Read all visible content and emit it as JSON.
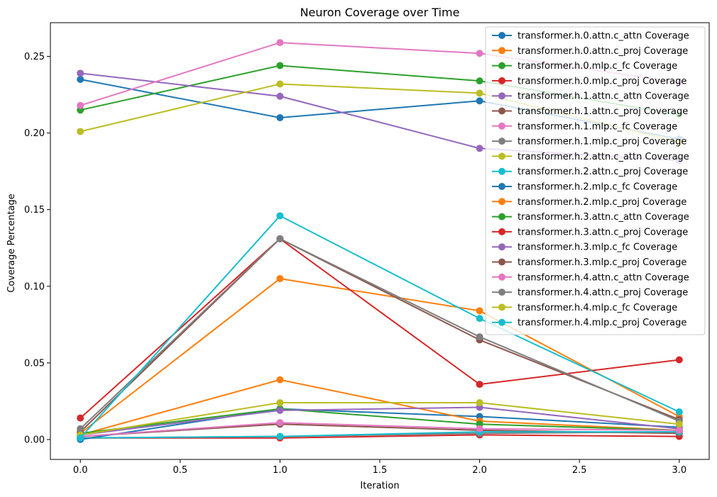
{
  "chart_data": {
    "type": "line",
    "title": "Neuron Coverage over Time",
    "xlabel": "Iteration",
    "ylabel": "Coverage Percentage",
    "xlim": [
      -0.15,
      3.15
    ],
    "ylim": [
      -0.013,
      0.272
    ],
    "xticks": [
      "0.0",
      "0.5",
      "1.0",
      "1.5",
      "2.0",
      "2.5",
      "3.0"
    ],
    "yticks": [
      "0.00",
      "0.05",
      "0.10",
      "0.15",
      "0.20",
      "0.25"
    ],
    "grid": false,
    "legend_position": "top-right",
    "x": [
      0,
      1,
      2,
      3
    ],
    "series": [
      {
        "name": "transformer.h.0.attn.c_attn Coverage",
        "color": "#1f77b4",
        "values": [
          0.235,
          0.21,
          0.221,
          0.196
        ]
      },
      {
        "name": "transformer.h.0.attn.c_proj Coverage",
        "color": "#ff7f0e",
        "values": [
          0.004,
          0.105,
          0.084,
          0.015
        ]
      },
      {
        "name": "transformer.h.0.mlp.c_fc Coverage",
        "color": "#2ca02c",
        "values": [
          0.215,
          0.244,
          0.234,
          0.212
        ]
      },
      {
        "name": "transformer.h.0.mlp.c_proj Coverage",
        "color": "#d62728",
        "values": [
          0.001,
          0.001,
          0.003,
          0.002
        ]
      },
      {
        "name": "transformer.h.1.attn.c_attn Coverage",
        "color": "#9467bd",
        "values": [
          0.239,
          0.224,
          0.19,
          0.182
        ]
      },
      {
        "name": "transformer.h.1.attn.c_proj Coverage",
        "color": "#8c564b",
        "values": [
          0.002,
          0.01,
          0.006,
          0.004
        ]
      },
      {
        "name": "transformer.h.1.mlp.c_fc Coverage",
        "color": "#e377c2",
        "values": [
          0.218,
          0.259,
          0.252,
          0.233
        ]
      },
      {
        "name": "transformer.h.1.mlp.c_proj Coverage",
        "color": "#7f7f7f",
        "values": [
          0.001,
          0.002,
          0.004,
          0.005
        ]
      },
      {
        "name": "transformer.h.2.attn.c_attn Coverage",
        "color": "#bcbd22",
        "values": [
          0.201,
          0.232,
          0.226,
          0.194
        ]
      },
      {
        "name": "transformer.h.2.attn.c_proj Coverage",
        "color": "#17becf",
        "values": [
          0.001,
          0.002,
          0.005,
          0.005
        ]
      },
      {
        "name": "transformer.h.2.mlp.c_fc Coverage",
        "color": "#1f77b4",
        "values": [
          0.0,
          0.02,
          0.015,
          0.008
        ]
      },
      {
        "name": "transformer.h.2.mlp.c_proj Coverage",
        "color": "#ff7f0e",
        "values": [
          0.003,
          0.039,
          0.012,
          0.006
        ]
      },
      {
        "name": "transformer.h.3.attn.c_attn Coverage",
        "color": "#2ca02c",
        "values": [
          0.004,
          0.02,
          0.01,
          0.006
        ]
      },
      {
        "name": "transformer.h.3.attn.c_proj Coverage",
        "color": "#d62728",
        "values": [
          0.014,
          0.131,
          0.036,
          0.052
        ]
      },
      {
        "name": "transformer.h.3.mlp.c_fc Coverage",
        "color": "#9467bd",
        "values": [
          0.003,
          0.019,
          0.021,
          0.007
        ]
      },
      {
        "name": "transformer.h.3.mlp.c_proj Coverage",
        "color": "#8c564b",
        "values": [
          0.005,
          0.131,
          0.065,
          0.013
        ]
      },
      {
        "name": "transformer.h.4.attn.c_attn Coverage",
        "color": "#e377c2",
        "values": [
          0.002,
          0.011,
          0.007,
          0.006
        ]
      },
      {
        "name": "transformer.h.4.attn.c_proj Coverage",
        "color": "#7f7f7f",
        "values": [
          0.007,
          0.131,
          0.067,
          0.012
        ]
      },
      {
        "name": "transformer.h.4.mlp.c_fc Coverage",
        "color": "#bcbd22",
        "values": [
          0.003,
          0.024,
          0.024,
          0.01
        ]
      },
      {
        "name": "transformer.h.4.mlp.c_proj Coverage",
        "color": "#17becf",
        "values": [
          0.001,
          0.146,
          0.079,
          0.018
        ]
      }
    ]
  }
}
